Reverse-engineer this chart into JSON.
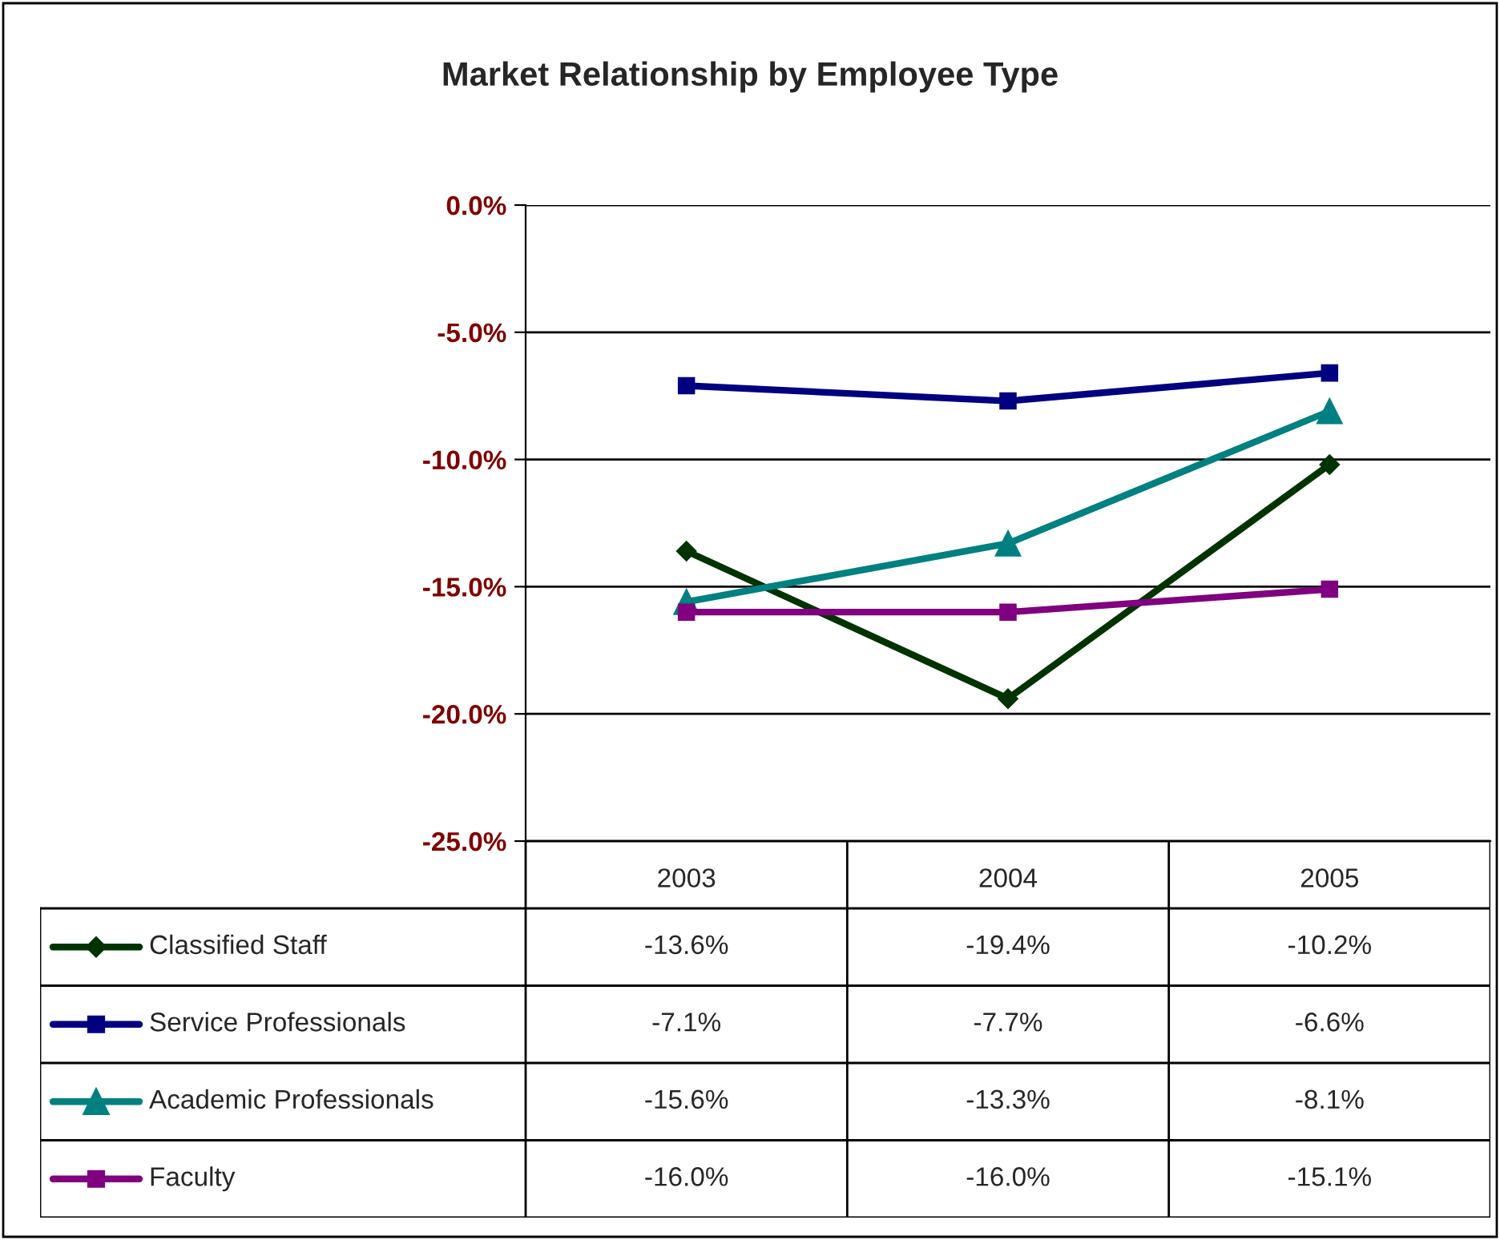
{
  "chart_data": {
    "type": "line",
    "title": "Market Relationship by Employee Type",
    "categories": [
      "2003",
      "2004",
      "2005"
    ],
    "series": [
      {
        "name": "Classified Staff",
        "color": "#003300",
        "marker": "diamond",
        "values": [
          -13.6,
          -19.4,
          -10.2
        ],
        "value_labels": [
          "-13.6%",
          "-19.4%",
          "-10.2%"
        ]
      },
      {
        "name": "Service Professionals",
        "color": "#000080",
        "marker": "square",
        "values": [
          -7.1,
          -7.7,
          -6.6
        ],
        "value_labels": [
          "-7.1%",
          "-7.7%",
          "-6.6%"
        ]
      },
      {
        "name": "Academic Professionals",
        "color": "#008080",
        "marker": "triangle",
        "values": [
          -15.6,
          -13.3,
          -8.1
        ],
        "value_labels": [
          "-15.6%",
          "-13.3%",
          "-8.1%"
        ]
      },
      {
        "name": "Faculty",
        "color": "#800080",
        "marker": "square",
        "values": [
          -16.0,
          -16.0,
          -15.1
        ],
        "value_labels": [
          "-16.0%",
          "-16.0%",
          "-15.1%"
        ]
      }
    ],
    "ylim": [
      -25,
      0
    ],
    "yticks": [
      {
        "value": 0,
        "label": "0.0%"
      },
      {
        "value": -5,
        "label": "-5.0%"
      },
      {
        "value": -10,
        "label": "-10.0%"
      },
      {
        "value": -15,
        "label": "-15.0%"
      },
      {
        "value": -20,
        "label": "-20.0%"
      },
      {
        "value": -25,
        "label": "-25.0%"
      }
    ],
    "grid": "y",
    "legend": "bottom",
    "line_style": "solid"
  }
}
